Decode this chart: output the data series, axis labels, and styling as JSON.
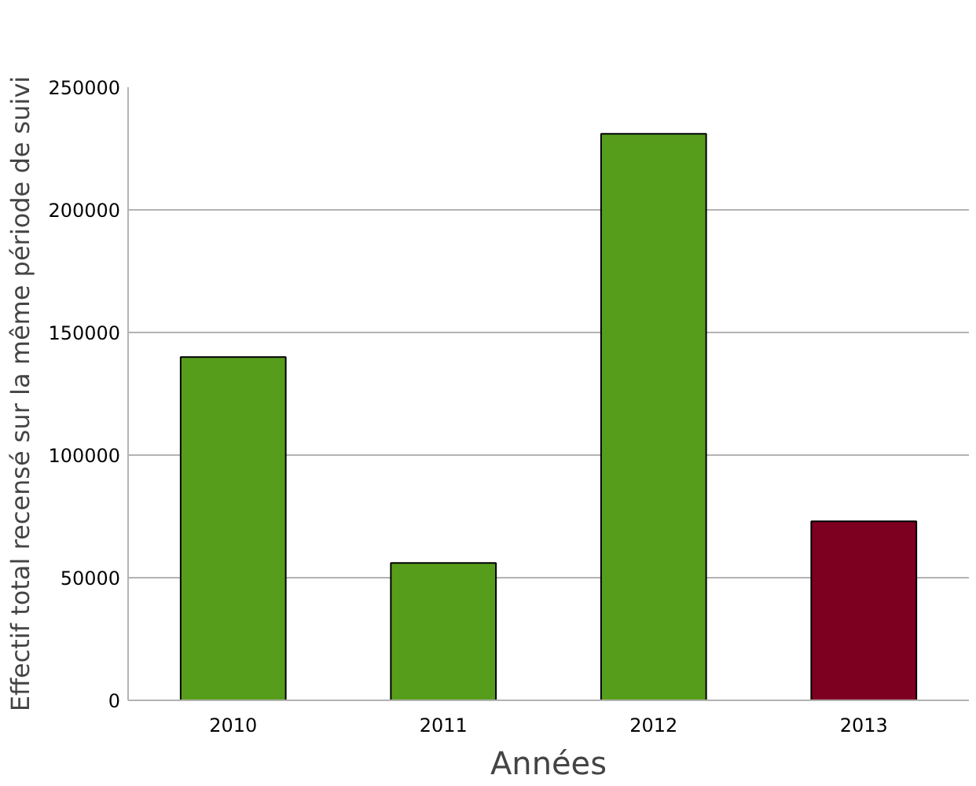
{
  "chart_data": {
    "type": "bar",
    "xlabel": "Années",
    "ylabel": "Effectif total recensé sur la même période de suivi",
    "categories": [
      "2010",
      "2011",
      "2012",
      "2013"
    ],
    "values": [
      140000,
      56000,
      231000,
      73000
    ],
    "colors": [
      "#579d1c",
      "#579d1c",
      "#579d1c",
      "#7e0021"
    ],
    "ylim": [
      0,
      250000
    ],
    "yticks": [
      0,
      50000,
      100000,
      150000,
      200000,
      250000
    ],
    "grid": "y"
  }
}
